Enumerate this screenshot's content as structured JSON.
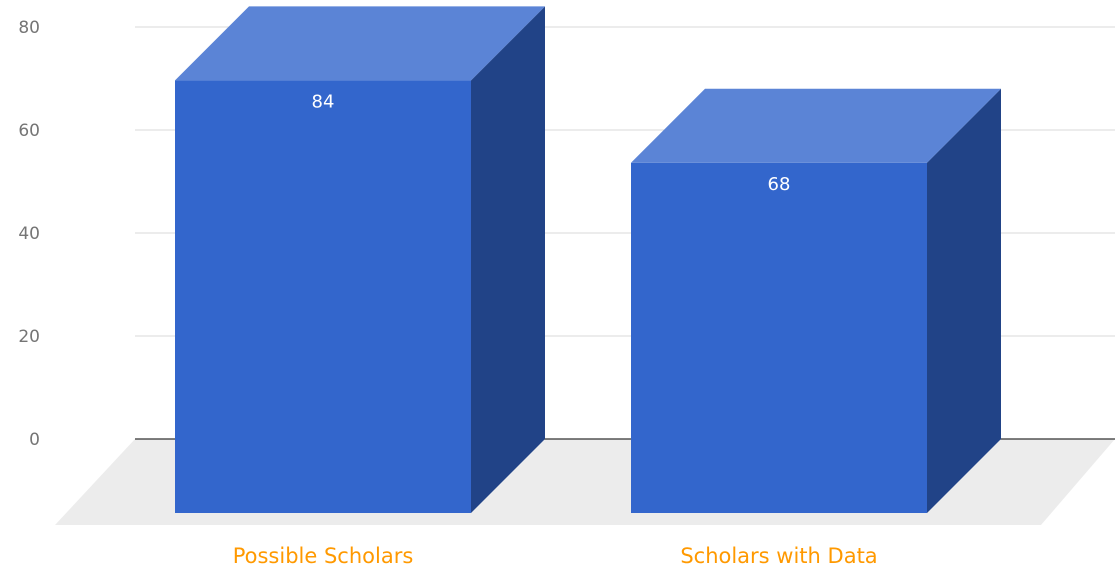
{
  "chart_data": {
    "type": "bar",
    "categories": [
      "Possible Scholars",
      "Scholars with Data"
    ],
    "values": [
      84,
      68
    ],
    "data_labels": [
      "84",
      "68"
    ],
    "ylim": [
      0,
      80
    ],
    "yticks": [
      0,
      20,
      40,
      60,
      80
    ],
    "ytick_labels": [
      "0",
      "20",
      "40",
      "60",
      "80"
    ],
    "grid": true,
    "three_d": true,
    "legend": "none",
    "colors": {
      "bar_front": "#3366cc",
      "bar_top": "#5b84d6",
      "bar_side": "#214387",
      "floor": "#ececec",
      "gridline": "#d9d9d9",
      "baseline": "#333333",
      "category_label": "#ff9900"
    }
  }
}
